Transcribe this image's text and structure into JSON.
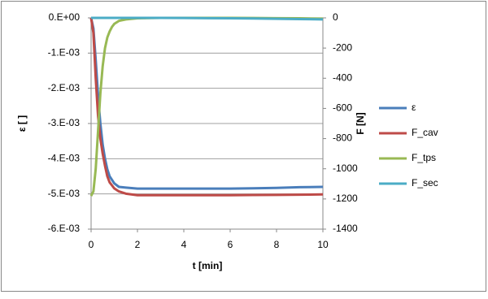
{
  "chart_data": {
    "type": "line",
    "x_label": "t [min]",
    "y_label": "ε [ ]",
    "y2_label": "F [N]",
    "x": [
      0,
      0.1,
      0.2,
      0.3,
      0.4,
      0.5,
      0.6,
      0.7,
      0.8,
      0.9,
      1,
      1.2,
      1.5,
      2,
      3,
      4,
      5,
      6,
      7,
      8,
      9,
      10
    ],
    "series": [
      {
        "name": "ε",
        "color": "#4a7ebb",
        "values": [
          0,
          -0.0003,
          -0.0012,
          -0.0022,
          -0.003,
          -0.0036,
          -0.004,
          -0.0043,
          -0.0045,
          -0.0046,
          -0.0047,
          -0.0048,
          -0.00482,
          -0.00485,
          -0.00485,
          -0.00485,
          -0.00485,
          -0.00485,
          -0.00484,
          -0.00483,
          -0.00481,
          -0.0048
        ]
      },
      {
        "name": "F_cav",
        "color": "#be4b48",
        "axis": "y2",
        "values": [
          0,
          -100,
          -400,
          -650,
          -800,
          -900,
          -980,
          -1050,
          -1090,
          -1110,
          -1130,
          -1150,
          -1165,
          -1175,
          -1175,
          -1175,
          -1175,
          -1175,
          -1174,
          -1173,
          -1172,
          -1170
        ]
      },
      {
        "name": "F_tps",
        "color": "#98b954",
        "axis": "y2",
        "values": [
          -1180,
          -1150,
          -1000,
          -750,
          -500,
          -320,
          -200,
          -130,
          -90,
          -60,
          -40,
          -20,
          -10,
          -3,
          0,
          0,
          0,
          0,
          -1,
          -2,
          -3,
          -5
        ]
      },
      {
        "name": "F_sec",
        "color": "#4bacc6",
        "axis": "y2",
        "values": [
          0,
          0,
          0,
          0,
          0,
          0,
          0,
          0,
          0,
          0,
          0,
          0,
          0,
          0,
          0,
          -1,
          -2,
          -3,
          -4,
          -6,
          -8,
          -10
        ]
      }
    ],
    "xlim": [
      0,
      10
    ],
    "xticks": [
      0,
      2,
      4,
      6,
      8,
      10
    ],
    "ylim": [
      -0.006,
      0
    ],
    "yticks": [
      {
        "value": -0.006,
        "label": "-6.E-03"
      },
      {
        "value": -0.005,
        "label": "-5.E-03"
      },
      {
        "value": -0.004,
        "label": "-4.E-03"
      },
      {
        "value": -0.003,
        "label": "-3.E-03"
      },
      {
        "value": -0.002,
        "label": "-2.E-03"
      },
      {
        "value": -0.001,
        "label": "-1.E-03"
      },
      {
        "value": 0,
        "label": "0.E+00"
      }
    ],
    "y2lim": [
      -1400,
      0
    ],
    "y2ticks": [
      -1400,
      -1200,
      -1000,
      -800,
      -600,
      -400,
      -200,
      0
    ],
    "grid": true,
    "legend": "right"
  }
}
